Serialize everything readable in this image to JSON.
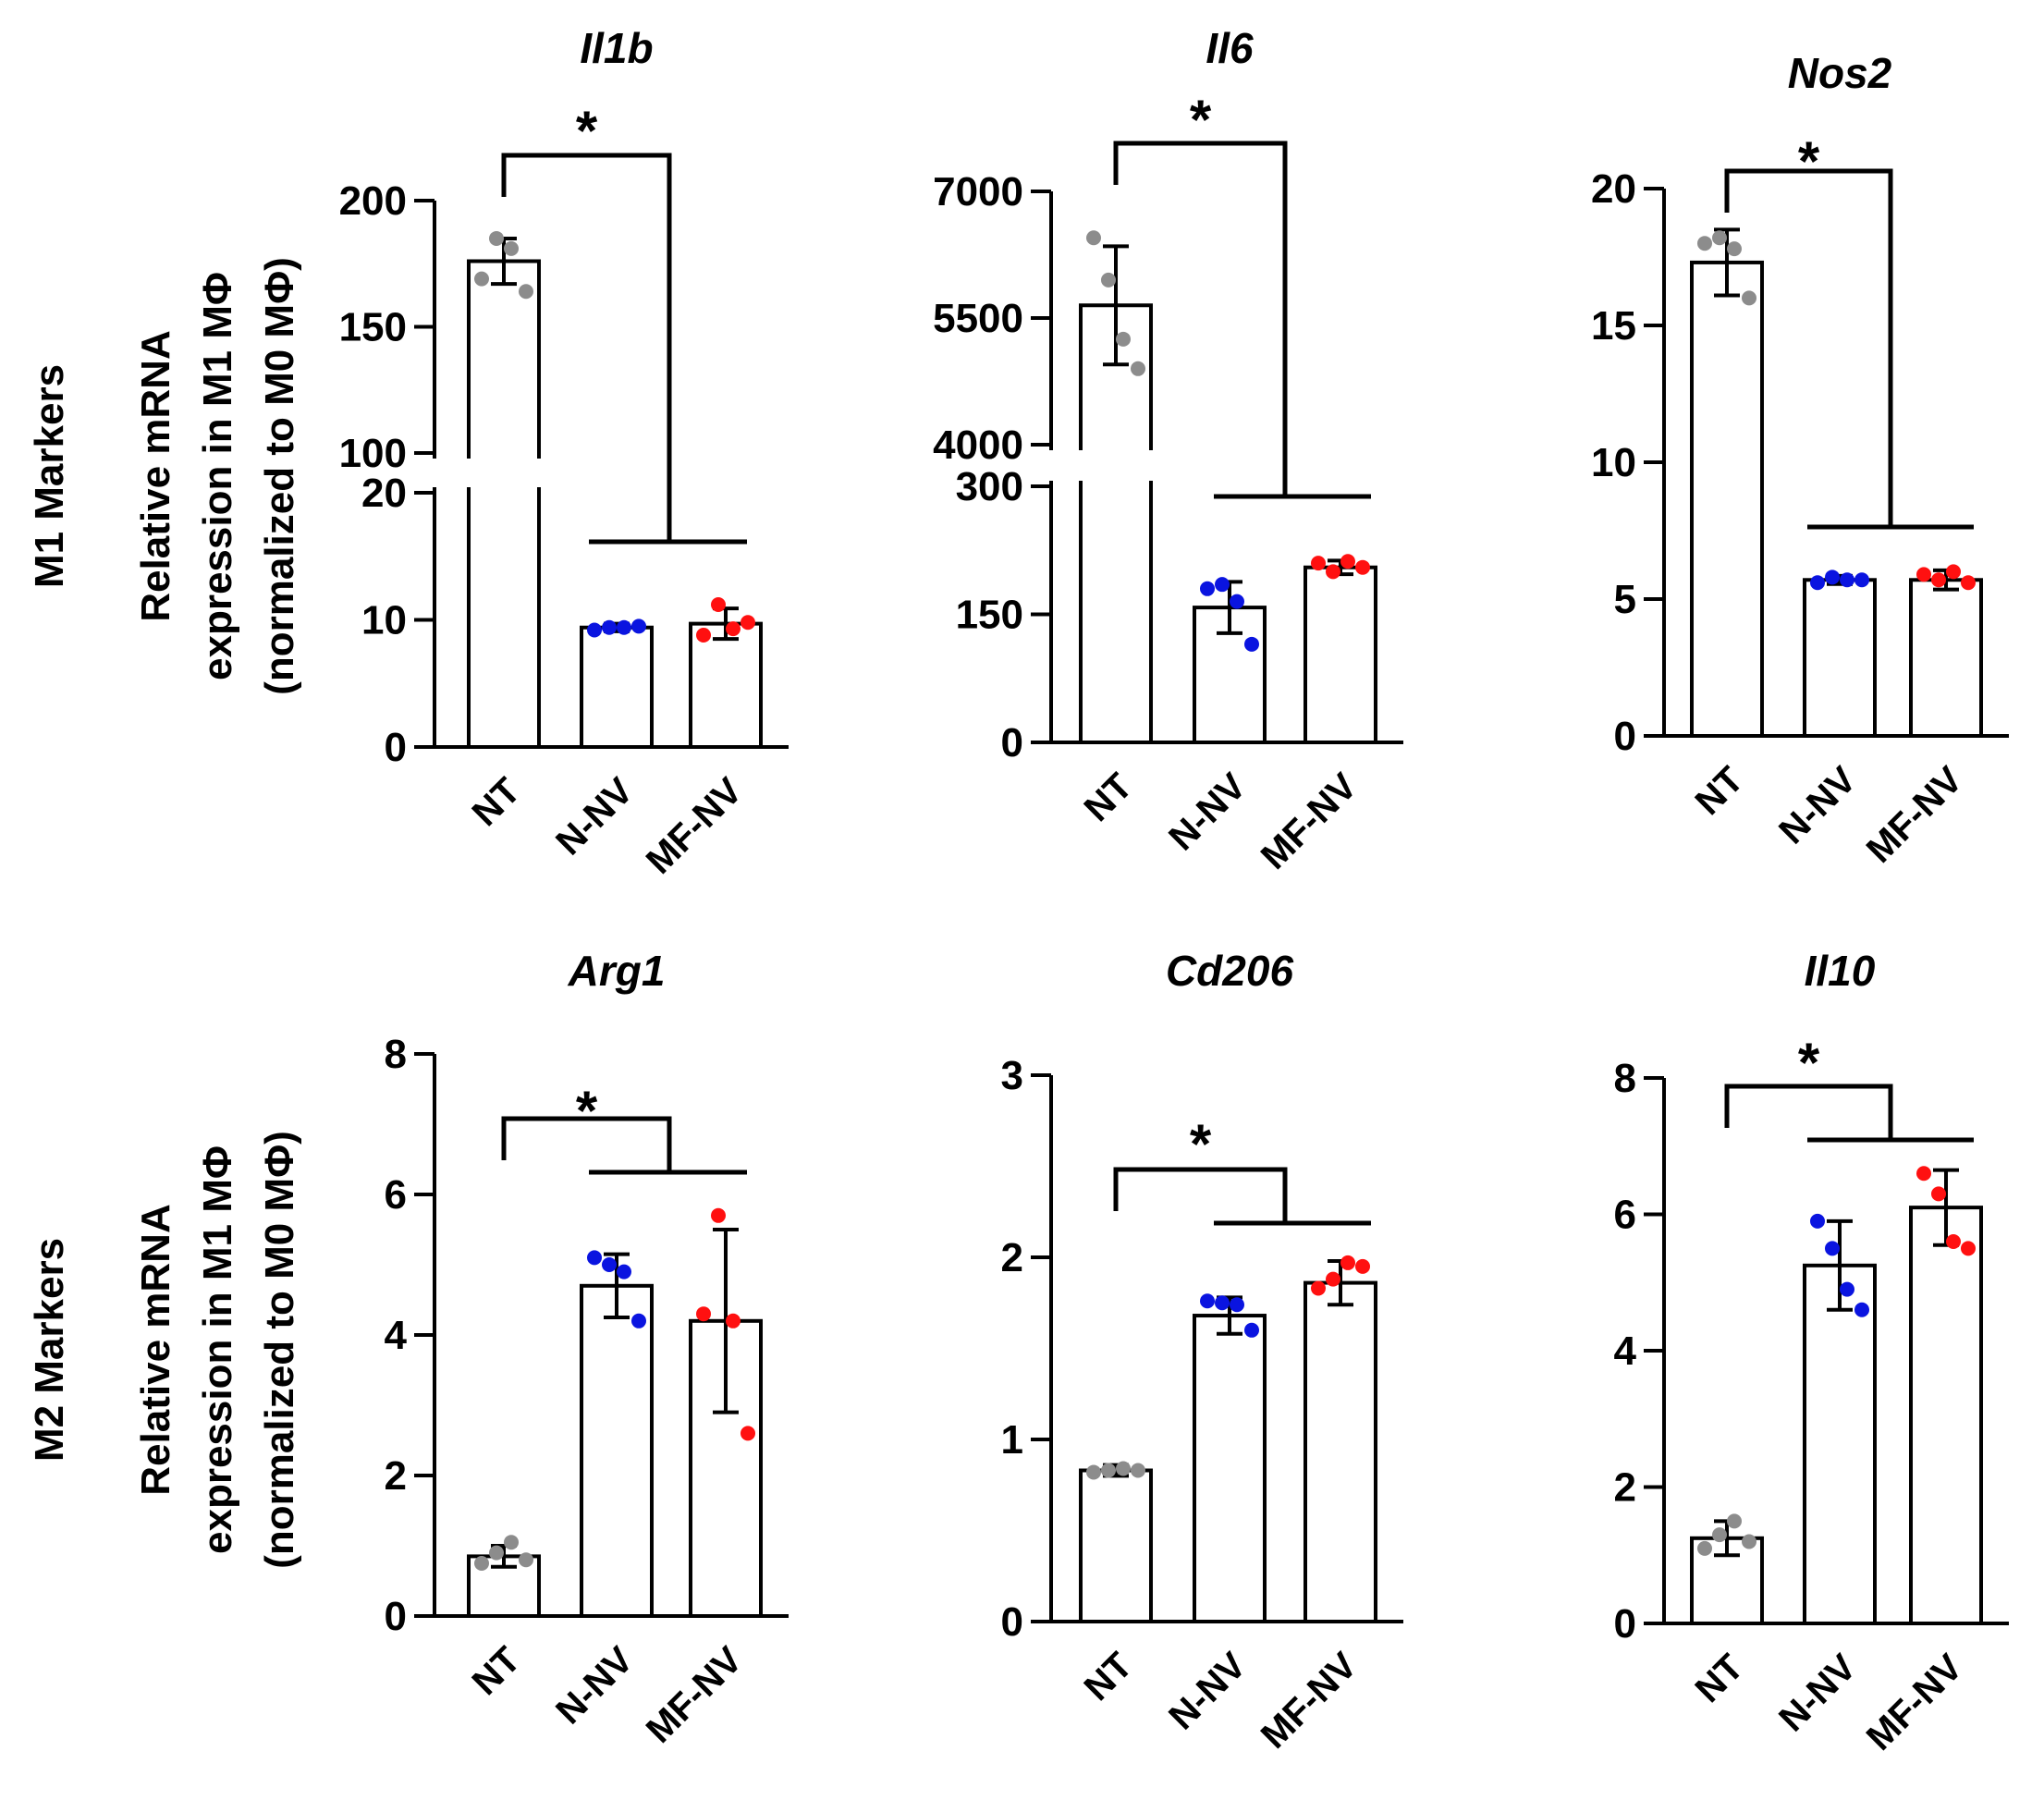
{
  "figure": {
    "row_labels": [
      {
        "text": "M1 Markers"
      },
      {
        "text": "M2 Markers"
      }
    ],
    "y_label_lines": [
      "Relative mRNA",
      "expression in M1 MΦ",
      "(normalized to M0 MΦ)"
    ]
  },
  "colors": {
    "NT": "#8c8c8c",
    "N-NV": "#0a14e0",
    "MF-NV": "#ff1010",
    "bar_fill": "#ffffff",
    "ink": "#000000"
  },
  "chart_data": [
    {
      "type": "bar",
      "title": "Il1b",
      "categories": [
        "NT",
        "N-NV",
        "MF-NV"
      ],
      "values": [
        176,
        9.4,
        9.7
      ],
      "errors": [
        9,
        0.3,
        1.2
      ],
      "points": [
        [
          169,
          185,
          181,
          164
        ],
        [
          9.2,
          9.4,
          9.4,
          9.5
        ],
        [
          8.8,
          11.2,
          9.3,
          9.8
        ]
      ],
      "broken_axis": true,
      "lower_range": [
        0,
        20
      ],
      "upper_range": [
        100,
        200
      ],
      "ticks_lower": [
        "0",
        "10",
        "20"
      ],
      "ticks_upper": [
        "100",
        "150",
        "200"
      ],
      "significance": "*",
      "comparison": "NT vs N-NV and MF-NV"
    },
    {
      "type": "bar",
      "title": "Il6",
      "categories": [
        "NT",
        "N-NV",
        "MF-NV"
      ],
      "values": [
        5650,
        158,
        205
      ],
      "errors": [
        700,
        30,
        8
      ],
      "points": [
        [
          6450,
          5950,
          5250,
          4900
        ],
        [
          180,
          185,
          165,
          115
        ],
        [
          210,
          200,
          212,
          205
        ]
      ],
      "broken_axis": true,
      "lower_range": [
        0,
        300
      ],
      "upper_range": [
        4000,
        7000
      ],
      "ticks_lower": [
        "0",
        "150",
        "300"
      ],
      "ticks_upper": [
        "4000",
        "5500",
        "7000"
      ],
      "significance": "*",
      "comparison": "NT vs N-NV and MF-NV"
    },
    {
      "type": "bar",
      "title": "Nos2",
      "categories": [
        "NT",
        "N-NV",
        "MF-NV"
      ],
      "values": [
        17.3,
        5.7,
        5.7
      ],
      "errors": [
        1.2,
        0.15,
        0.35
      ],
      "points": [
        [
          18.0,
          18.2,
          17.8,
          16.0
        ],
        [
          5.6,
          5.8,
          5.7,
          5.7
        ],
        [
          5.9,
          5.7,
          6.0,
          5.6
        ]
      ],
      "ylim": [
        0,
        20
      ],
      "ticks": [
        "0",
        "5",
        "10",
        "15",
        "20"
      ],
      "significance": "*",
      "comparison": "NT vs N-NV and MF-NV"
    },
    {
      "type": "bar",
      "title": "Arg1",
      "categories": [
        "NT",
        "N-NV",
        "MF-NV"
      ],
      "values": [
        0.85,
        4.7,
        4.2
      ],
      "errors": [
        0.15,
        0.45,
        1.3
      ],
      "points": [
        [
          0.75,
          0.9,
          1.05,
          0.8
        ],
        [
          5.1,
          5.0,
          4.9,
          4.2
        ],
        [
          4.3,
          5.7,
          4.2,
          2.6
        ]
      ],
      "ylim": [
        0,
        8
      ],
      "ticks": [
        "0",
        "2",
        "4",
        "6",
        "8"
      ],
      "significance": "*",
      "comparison": "NT vs N-NV and MF-NV"
    },
    {
      "type": "bar",
      "title": "Cd206",
      "categories": [
        "NT",
        "N-NV",
        "MF-NV"
      ],
      "values": [
        0.83,
        1.68,
        1.86
      ],
      "errors": [
        0.03,
        0.1,
        0.12
      ],
      "points": [
        [
          0.82,
          0.83,
          0.84,
          0.83
        ],
        [
          1.76,
          1.75,
          1.74,
          1.6
        ],
        [
          1.83,
          1.88,
          1.97,
          1.95
        ]
      ],
      "ylim": [
        0,
        3
      ],
      "ticks": [
        "0",
        "1",
        "2",
        "3"
      ],
      "significance": "*",
      "comparison": "NT vs N-NV and MF-NV"
    },
    {
      "type": "bar",
      "title": "Il10",
      "categories": [
        "NT",
        "N-NV",
        "MF-NV"
      ],
      "values": [
        1.25,
        5.25,
        6.1
      ],
      "errors": [
        0.25,
        0.65,
        0.55
      ],
      "points": [
        [
          1.1,
          1.3,
          1.5,
          1.2
        ],
        [
          5.9,
          5.5,
          4.9,
          4.6
        ],
        [
          6.6,
          6.3,
          5.6,
          5.5
        ]
      ],
      "ylim": [
        0,
        8
      ],
      "ticks": [
        "0",
        "2",
        "4",
        "6",
        "8"
      ],
      "significance": "*",
      "comparison": "NT vs N-NV and MF-NV"
    }
  ]
}
